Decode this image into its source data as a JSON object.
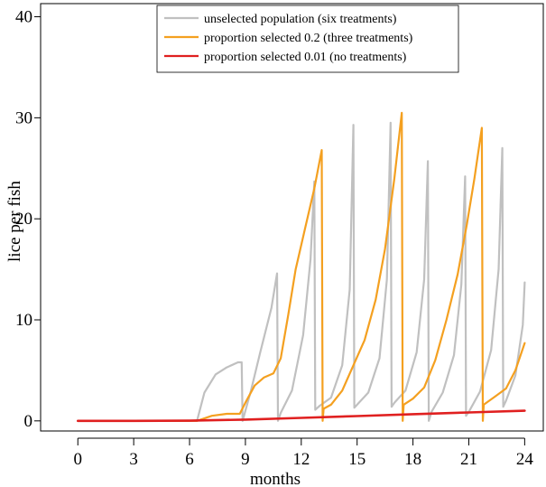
{
  "chart_data": {
    "type": "line",
    "xlabel": "months",
    "ylabel": "lice per fish",
    "xlim": [
      -2.0,
      25.0
    ],
    "ylim": [
      -1.0,
      41.3
    ],
    "xticks": [
      0,
      3,
      6,
      9,
      12,
      15,
      18,
      21,
      24
    ],
    "yticks": [
      0,
      10,
      20,
      30,
      40
    ],
    "legend_position": "top-center",
    "series": [
      {
        "name": "unselected population (six treatments)",
        "color": "#c0c0c0",
        "x": [
          0,
          6.4,
          6.8,
          7.4,
          8.0,
          8.6,
          8.8,
          8.85,
          9.3,
          9.8,
          10.4,
          10.7,
          10.75,
          10.9,
          11.5,
          12.1,
          12.5,
          12.7,
          12.75,
          13.0,
          13.6,
          14.2,
          14.6,
          14.8,
          14.85,
          15.0,
          15.6,
          16.2,
          16.6,
          16.8,
          16.85,
          17.0,
          17.6,
          18.2,
          18.6,
          18.8,
          18.85,
          19.0,
          19.6,
          20.2,
          20.6,
          20.8,
          20.85,
          21.0,
          21.6,
          22.2,
          22.6,
          22.8,
          22.85,
          23.0,
          23.5,
          23.9,
          24.0
        ],
        "y": [
          0,
          0,
          2.8,
          4.6,
          5.3,
          5.8,
          5.8,
          0,
          3.0,
          6.8,
          11.2,
          14.6,
          0,
          0.8,
          3.0,
          8.5,
          16.0,
          23.7,
          1.1,
          1.5,
          2.3,
          5.5,
          13.0,
          29.3,
          1.3,
          1.6,
          2.8,
          6.2,
          14.0,
          29.5,
          1.4,
          1.8,
          3.0,
          6.8,
          14.0,
          25.7,
          0,
          0.9,
          2.8,
          6.5,
          13.5,
          24.2,
          0.5,
          0.9,
          2.9,
          7.0,
          15.0,
          27.0,
          1.4,
          2.0,
          4.5,
          9.5,
          13.7
        ]
      },
      {
        "name": "proportion selected 0.2 (three treatments)",
        "color": "#f4a020",
        "x": [
          0,
          6.4,
          7.2,
          8.0,
          8.7,
          9.0,
          9.5,
          10.0,
          10.5,
          10.9,
          11.3,
          11.7,
          12.2,
          12.7,
          13.1,
          13.15,
          13.2,
          13.6,
          14.2,
          14.8,
          15.4,
          16.0,
          16.5,
          17.0,
          17.4,
          17.45,
          17.5,
          18.0,
          18.6,
          19.2,
          19.8,
          20.4,
          20.9,
          21.3,
          21.7,
          21.75,
          21.8,
          22.4,
          23.0,
          23.5,
          24.0
        ],
        "y": [
          0,
          0,
          0.5,
          0.7,
          0.7,
          1.8,
          3.5,
          4.3,
          4.7,
          6.2,
          10.5,
          15.0,
          19.0,
          23.0,
          26.8,
          0,
          1.2,
          1.6,
          3.0,
          5.5,
          8.0,
          12.0,
          17.0,
          24.0,
          30.5,
          0,
          1.6,
          2.2,
          3.3,
          6.0,
          10.0,
          14.5,
          19.5,
          24.0,
          29.0,
          0,
          1.6,
          2.4,
          3.2,
          5.0,
          7.7
        ]
      },
      {
        "name": "proportion selected 0.01 (no treatments)",
        "color": "#e02020",
        "x": [
          0,
          3,
          6,
          9,
          12,
          15,
          18,
          21,
          24
        ],
        "y": [
          0,
          0,
          0.02,
          0.13,
          0.3,
          0.48,
          0.66,
          0.83,
          1.0
        ]
      }
    ]
  }
}
